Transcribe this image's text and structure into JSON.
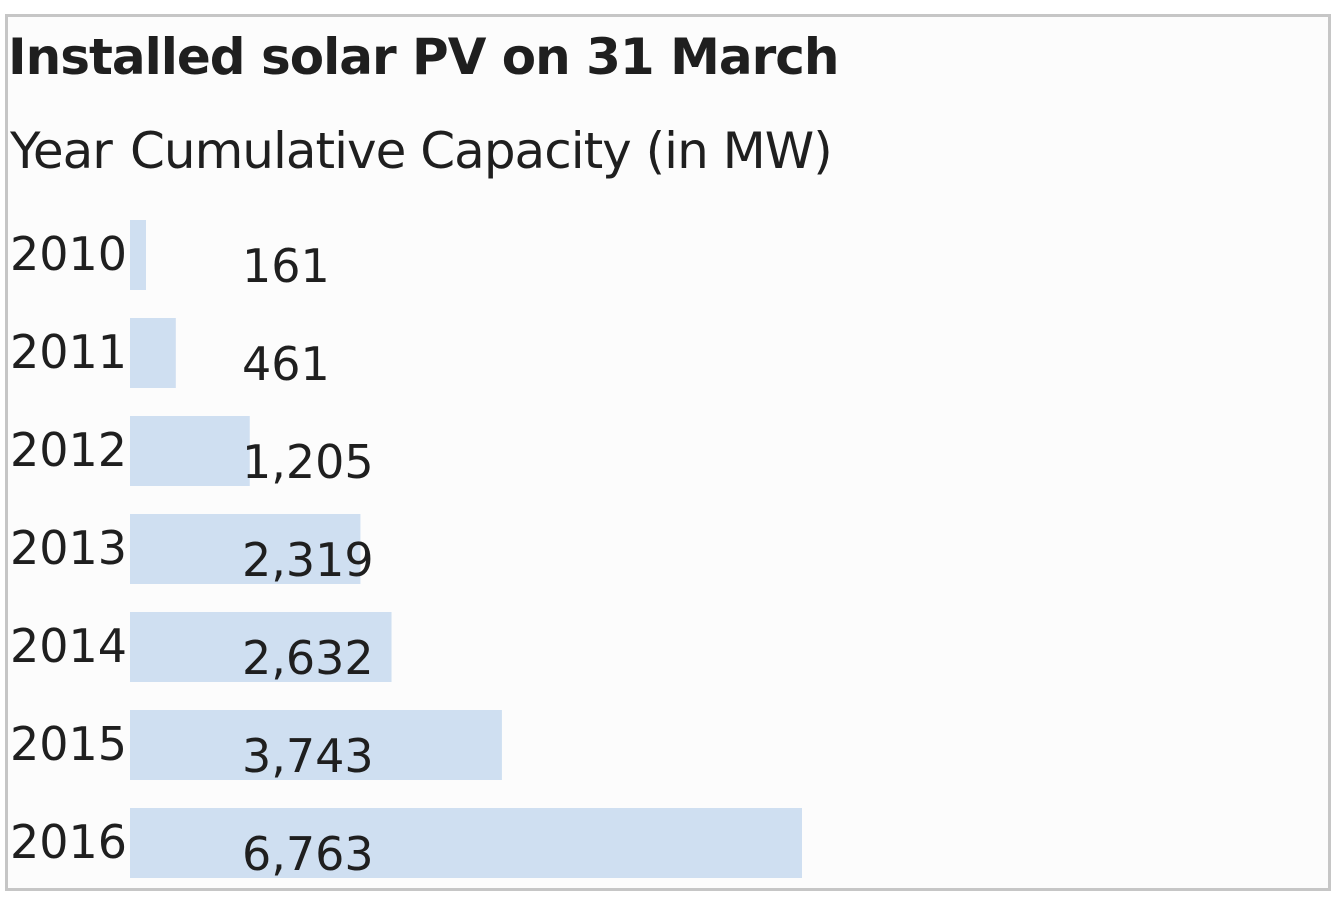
{
  "chart_data": {
    "type": "bar",
    "orientation": "horizontal",
    "title": "Installed solar PV on 31 March",
    "columns": [
      "Year",
      "Cumulative Capacity (in MW)"
    ],
    "categories": [
      "2010",
      "2011",
      "2012",
      "2013",
      "2014",
      "2015",
      "2016"
    ],
    "values": [
      161,
      461,
      1205,
      2319,
      2632,
      3743,
      6763
    ],
    "value_labels": [
      "161",
      "461",
      "1,205",
      "2,319",
      "2,632",
      "3,743",
      "6,763"
    ],
    "bar_color": "#cfdff1",
    "grid": false
  }
}
